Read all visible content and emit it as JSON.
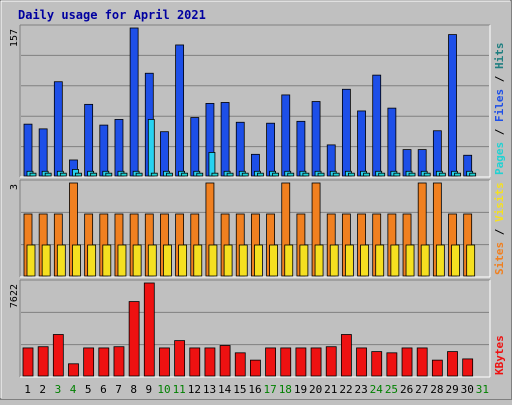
{
  "chart_data": {
    "type": "bar",
    "title": "Daily usage for April 2021",
    "categories": [
      "1",
      "2",
      "3",
      "4",
      "5",
      "6",
      "7",
      "8",
      "9",
      "10",
      "11",
      "12",
      "13",
      "14",
      "15",
      "16",
      "17",
      "18",
      "19",
      "20",
      "21",
      "22",
      "23",
      "24",
      "25",
      "26",
      "27",
      "28",
      "29",
      "30",
      "31"
    ],
    "weekend_days": [
      "3",
      "4",
      "10",
      "11",
      "17",
      "18",
      "24",
      "25",
      "31"
    ],
    "hits_panel": {
      "max_label": "157",
      "series": [
        {
          "name": "Hits",
          "color": "#1d4fe8",
          "values": [
            55,
            50,
            100,
            17,
            76,
            54,
            60,
            157,
            109,
            47,
            139,
            62,
            77,
            78,
            57,
            23,
            56,
            86,
            58,
            79,
            33,
            92,
            69,
            107,
            72,
            28,
            28,
            48,
            150,
            22,
            0
          ]
        },
        {
          "name": "Files",
          "color": "#29d2f0",
          "values": [
            5,
            5,
            5,
            7,
            5,
            5,
            5,
            5,
            60,
            5,
            5,
            5,
            25,
            5,
            5,
            5,
            5,
            5,
            5,
            5,
            5,
            5,
            5,
            5,
            5,
            5,
            5,
            5,
            5,
            5,
            0
          ]
        },
        {
          "name": "Pages",
          "color": "#22d2d2",
          "values": [
            3,
            3,
            3,
            3,
            3,
            3,
            3,
            3,
            3,
            3,
            3,
            3,
            3,
            3,
            3,
            3,
            3,
            3,
            3,
            3,
            3,
            3,
            3,
            3,
            3,
            3,
            3,
            3,
            3,
            3,
            0
          ]
        }
      ],
      "legend": [
        "Pages",
        "Files",
        "Hits"
      ],
      "legend_colors": [
        "#22d2d2",
        "#1d4fe8",
        "#1f7f80"
      ]
    },
    "visits_panel": {
      "max_label": "3",
      "series": [
        {
          "name": "Visits",
          "color": "#f08020",
          "values": [
            2,
            2,
            2,
            3,
            2,
            2,
            2,
            2,
            2,
            2,
            2,
            2,
            3,
            2,
            2,
            2,
            2,
            3,
            2,
            3,
            2,
            2,
            2,
            2,
            2,
            2,
            3,
            3,
            2,
            2,
            0
          ]
        },
        {
          "name": "Sites",
          "color": "#f5e020",
          "values": [
            1,
            1,
            1,
            1,
            1,
            1,
            1,
            1,
            1,
            1,
            1,
            1,
            1,
            1,
            1,
            1,
            1,
            1,
            1,
            1,
            1,
            1,
            1,
            1,
            1,
            1,
            1,
            1,
            1,
            1,
            0
          ]
        }
      ],
      "legend": [
        "Sites",
        "Visits"
      ],
      "legend_colors": [
        "#f08020",
        "#f5e020"
      ]
    },
    "kbytes_panel": {
      "max_label": "7622",
      "series": [
        {
          "name": "KBytes",
          "color": "#ee1111",
          "values": [
            2300,
            2400,
            3400,
            1000,
            2300,
            2300,
            2400,
            6100,
            7622,
            2300,
            2900,
            2300,
            2300,
            2500,
            1900,
            1300,
            2300,
            2300,
            2300,
            2300,
            2400,
            3400,
            2300,
            2000,
            1900,
            2300,
            2300,
            1300,
            2000,
            1400,
            0
          ]
        }
      ],
      "legend": [
        "KBytes"
      ],
      "legend_colors": [
        "#ee1111"
      ]
    }
  }
}
